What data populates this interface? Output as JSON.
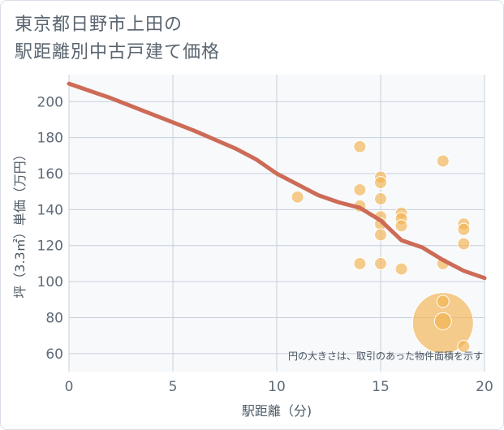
{
  "title_line1": "東京都日野市上田の",
  "title_line2": "駅距離別中古戸建て価格",
  "colors": {
    "line": "#cd6b57",
    "bubble": "#f2b24f",
    "grid": "#c8d0db",
    "plot_bg": "#f7f9fb"
  },
  "chart_data": {
    "type": "scatter",
    "xlabel": "駅距離（分)",
    "ylabel": "坪（3.3㎡）単価（万円）",
    "xlim": [
      0,
      20
    ],
    "ylim": [
      50,
      215
    ],
    "x_ticks": [
      0,
      5,
      10,
      15,
      20
    ],
    "y_ticks": [
      60,
      80,
      100,
      120,
      140,
      160,
      180,
      200
    ],
    "note": "円の大きさは、取引のあった物件面積を示す",
    "trend_line": [
      {
        "x": 0,
        "y": 210
      },
      {
        "x": 2,
        "y": 202
      },
      {
        "x": 4,
        "y": 193
      },
      {
        "x": 6,
        "y": 184
      },
      {
        "x": 8,
        "y": 174
      },
      {
        "x": 9,
        "y": 168
      },
      {
        "x": 10,
        "y": 160
      },
      {
        "x": 11,
        "y": 154
      },
      {
        "x": 12,
        "y": 148
      },
      {
        "x": 13,
        "y": 144
      },
      {
        "x": 14,
        "y": 141
      },
      {
        "x": 15,
        "y": 134
      },
      {
        "x": 16,
        "y": 123
      },
      {
        "x": 17,
        "y": 119
      },
      {
        "x": 18,
        "y": 112
      },
      {
        "x": 19,
        "y": 106
      },
      {
        "x": 20,
        "y": 102
      }
    ],
    "points": [
      {
        "x": 11,
        "y": 147,
        "size": 1
      },
      {
        "x": 14,
        "y": 175,
        "size": 1
      },
      {
        "x": 14,
        "y": 151,
        "size": 1
      },
      {
        "x": 14,
        "y": 142,
        "size": 1
      },
      {
        "x": 14,
        "y": 110,
        "size": 1
      },
      {
        "x": 15,
        "y": 158,
        "size": 1
      },
      {
        "x": 15,
        "y": 155,
        "size": 1
      },
      {
        "x": 15,
        "y": 146,
        "size": 1
      },
      {
        "x": 15,
        "y": 136,
        "size": 1
      },
      {
        "x": 15,
        "y": 132,
        "size": 1
      },
      {
        "x": 15,
        "y": 126,
        "size": 1
      },
      {
        "x": 15,
        "y": 110,
        "size": 1
      },
      {
        "x": 16,
        "y": 138,
        "size": 1
      },
      {
        "x": 16,
        "y": 135,
        "size": 1
      },
      {
        "x": 16,
        "y": 131,
        "size": 1
      },
      {
        "x": 16,
        "y": 107,
        "size": 1
      },
      {
        "x": 18,
        "y": 167,
        "size": 1
      },
      {
        "x": 18,
        "y": 110,
        "size": 1
      },
      {
        "x": 18,
        "y": 89,
        "size": 1
      },
      {
        "x": 18,
        "y": 78,
        "size": 1.4
      },
      {
        "x": 18,
        "y": 77,
        "size": 5
      },
      {
        "x": 19,
        "y": 132,
        "size": 1
      },
      {
        "x": 19,
        "y": 129,
        "size": 1
      },
      {
        "x": 19,
        "y": 121,
        "size": 1
      },
      {
        "x": 19,
        "y": 64,
        "size": 1
      }
    ]
  }
}
